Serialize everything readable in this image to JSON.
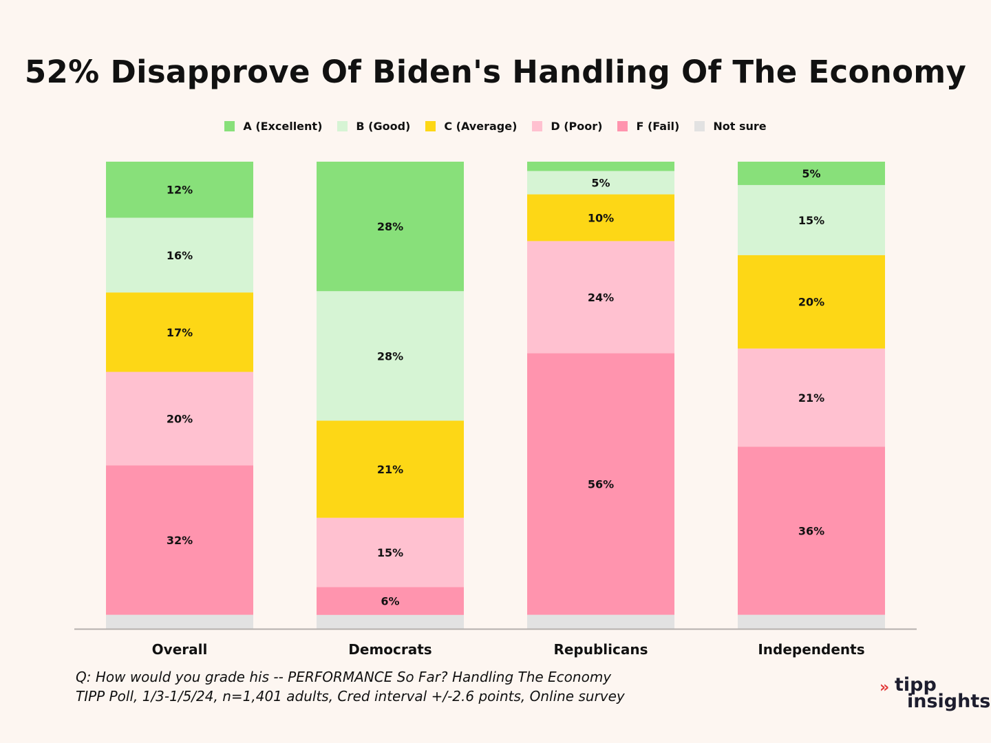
{
  "chart_data": {
    "type": "bar",
    "stacked": true,
    "orientation": "vertical",
    "title": "52% Disapprove Of Biden's Handling Of The Economy",
    "legend_position": "top",
    "categories": [
      "Overall",
      "Democrats",
      "Republicans",
      "Independents"
    ],
    "series": [
      {
        "name": "A (Excellent)",
        "color": "#88e07a",
        "values": [
          12,
          28,
          2,
          5
        ],
        "labels": [
          "12%",
          "28%",
          "",
          "5%"
        ]
      },
      {
        "name": "B (Good)",
        "color": "#d6f4d4",
        "values": [
          16,
          28,
          5,
          15
        ],
        "labels": [
          "16%",
          "28%",
          "5%",
          "15%"
        ]
      },
      {
        "name": "C (Average)",
        "color": "#fdd716",
        "values": [
          17,
          21,
          10,
          20
        ],
        "labels": [
          "17%",
          "21%",
          "10%",
          "20%"
        ]
      },
      {
        "name": "D (Poor)",
        "color": "#ffc1d0",
        "values": [
          20,
          15,
          24,
          21
        ],
        "labels": [
          "20%",
          "15%",
          "24%",
          "21%"
        ]
      },
      {
        "name": "F (Fail)",
        "color": "#ff94ae",
        "values": [
          32,
          6,
          56,
          36
        ],
        "labels": [
          "32%",
          "6%",
          "56%",
          "36%"
        ]
      },
      {
        "name": "Not sure",
        "color": "#e2e2e2",
        "values": [
          3,
          3,
          3,
          3
        ],
        "labels": [
          "",
          "",
          "",
          ""
        ]
      }
    ],
    "xlabel": "",
    "ylabel": "",
    "grid": false
  },
  "footnote": {
    "line1": "Q:  How would you grade his -- PERFORMANCE So Far? Handling The Economy",
    "line2": "TIPP Poll, 1/3-1/5/24, n=1,401 adults, Cred interval +/-2.6 points, Online survey"
  },
  "logo": {
    "arrow": "»",
    "top": "tipp",
    "bottom": "insights"
  }
}
